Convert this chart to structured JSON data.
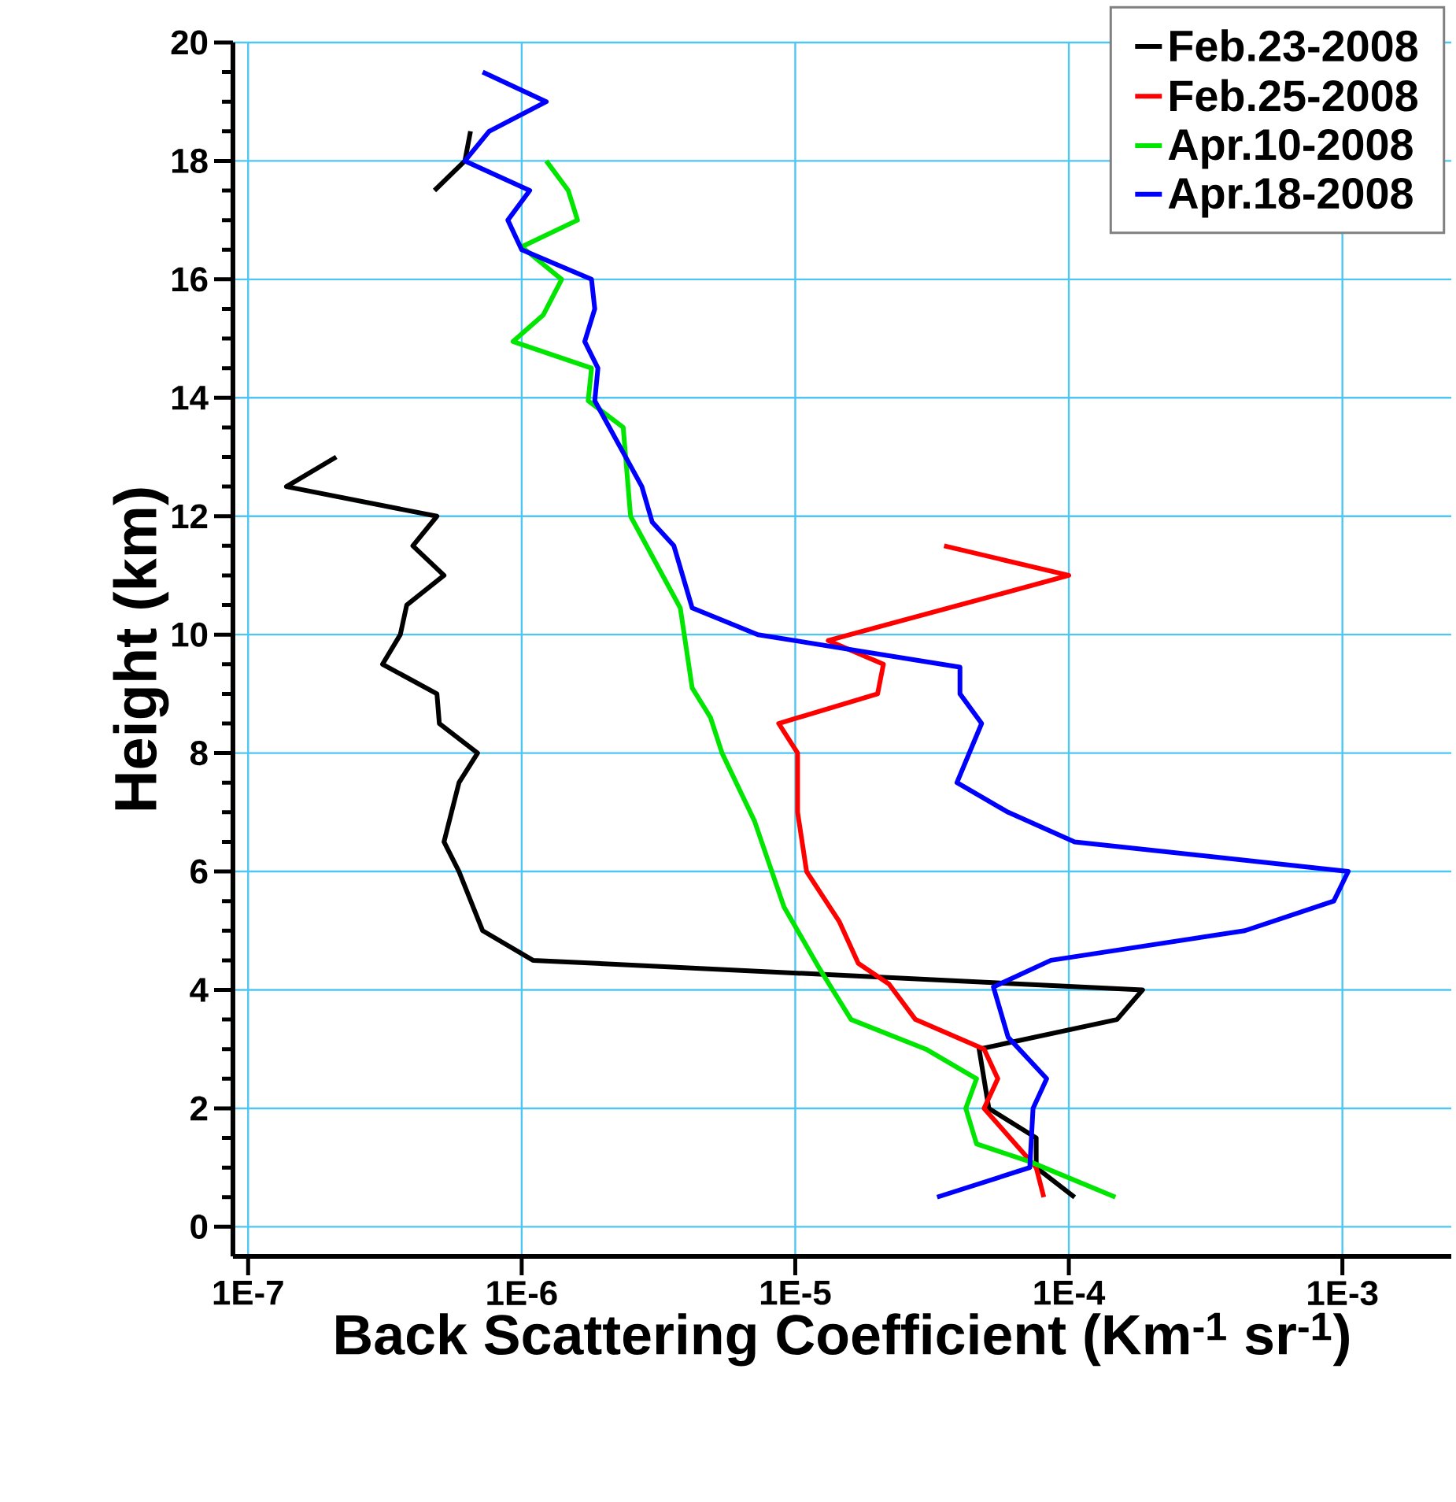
{
  "chart_data": {
    "type": "line",
    "xlabel": "Back Scattering Coefficient (Km$^{-1}$ sr$^{-1}$)",
    "ylabel": "Height (km)",
    "log": "x",
    "xlim": [
      8.8e-08,
      0.0025
    ],
    "ylim": [
      -0.5,
      20
    ],
    "xticks": [
      {
        "value": 1e-07,
        "label": "1E-7"
      },
      {
        "value": 1e-06,
        "label": "1E-6"
      },
      {
        "value": 1e-05,
        "label": "1E-5"
      },
      {
        "value": 0.0001,
        "label": "1E-4"
      },
      {
        "value": 0.001,
        "label": "1E-3"
      }
    ],
    "yticks": [
      0,
      2,
      4,
      6,
      8,
      10,
      12,
      14,
      16,
      18,
      20
    ],
    "grid": true,
    "legend": "top right",
    "marker": "none",
    "line_style": "solid",
    "series": [
      {
        "name": "Feb.23-2008",
        "color": "#000000",
        "x": [
          0.000105,
          7.6e-05,
          7.6e-05,
          5.1e-05,
          4.7e-05,
          0.00015,
          0.000186,
          1.1e-06,
          7.2e-07,
          5.9e-07,
          5.2e-07,
          5.9e-07,
          6.9e-07,
          5e-07,
          4.9e-07,
          3.1e-07,
          3.6e-07,
          3.8e-07,
          5.2e-07,
          4e-07,
          4.9e-07,
          1.38e-07,
          2.1e-07,
          null,
          4.8e-07,
          6.2e-07,
          6.5e-07
        ],
        "values": [
          0.5,
          1.0,
          1.5,
          2.0,
          3.0,
          3.5,
          4.0,
          4.5,
          5.0,
          6.0,
          6.5,
          7.5,
          8.0,
          8.5,
          9.0,
          9.5,
          10.0,
          10.5,
          11.0,
          11.5,
          12.0,
          12.5,
          13.0,
          null,
          17.5,
          18.0,
          18.5
        ]
      },
      {
        "name": "Feb.25-2008",
        "color": "#ff0000",
        "x": [
          8.1e-05,
          7.6e-05,
          4.9e-05,
          5.5e-05,
          4.9e-05,
          2.75e-05,
          2.2e-05,
          1.7e-05,
          1.45e-05,
          1.1e-05,
          1.02e-05,
          1.02e-05,
          8.7e-06,
          2e-05,
          2.1e-05,
          1.32e-05,
          0.0001,
          3.5e-05
        ],
        "values": [
          0.5,
          1.0,
          2.0,
          2.5,
          3.0,
          3.5,
          4.1,
          4.45,
          5.15,
          6.0,
          7.0,
          8.0,
          8.5,
          9.0,
          9.5,
          9.9,
          11.0,
          11.5
        ]
      },
      {
        "name": "Apr.10-2008",
        "color": "#00e600",
        "x": [
          0.000148,
          7.2e-05,
          4.6e-05,
          4.2e-05,
          4.6e-05,
          3e-05,
          1.6e-05,
          1.23e-05,
          9.1e-06,
          7.1e-06,
          5.4e-06,
          4.9e-06,
          4.2e-06,
          3.8e-06,
          2.5e-06,
          2.35e-06,
          1.75e-06,
          1.8e-06,
          9.3e-07,
          1.2e-06,
          1.4e-06,
          1e-06,
          1.6e-06,
          1.48e-06,
          1.23e-06
        ],
        "values": [
          0.5,
          1.1,
          1.4,
          2.0,
          2.5,
          3.0,
          3.5,
          4.35,
          5.4,
          6.85,
          8.0,
          8.6,
          9.1,
          10.45,
          12.0,
          13.5,
          13.95,
          14.5,
          14.95,
          15.4,
          16.0,
          16.55,
          17.0,
          17.5,
          18.0
        ]
      },
      {
        "name": "Apr.18-2008",
        "color": "#0000ff",
        "x": [
          3.3e-05,
          7.2e-05,
          7.4e-05,
          8.3e-05,
          6e-05,
          5.3e-05,
          8.6e-05,
          0.00044,
          0.00093,
          0.00105,
          0.000105,
          6e-05,
          3.9e-05,
          4.8e-05,
          4e-05,
          4e-05,
          7.3e-06,
          4.2e-06,
          3.6e-06,
          3e-06,
          2.75e-06,
          1.85e-06,
          1.9e-06,
          1.7e-06,
          1.85e-06,
          1.8e-06,
          1e-06,
          8.9e-07,
          1.07e-06,
          6.2e-07,
          7.6e-07,
          1.23e-06,
          7.2e-07
        ],
        "values": [
          0.5,
          1.0,
          2.0,
          2.5,
          3.2,
          4.05,
          4.5,
          5.0,
          5.5,
          6.0,
          6.5,
          7.0,
          7.5,
          8.5,
          9.0,
          9.45,
          10.0,
          10.45,
          11.5,
          11.9,
          12.5,
          13.95,
          14.5,
          14.95,
          15.5,
          16.0,
          16.5,
          17.0,
          17.5,
          18.0,
          18.5,
          19.0,
          19.5
        ]
      }
    ]
  }
}
